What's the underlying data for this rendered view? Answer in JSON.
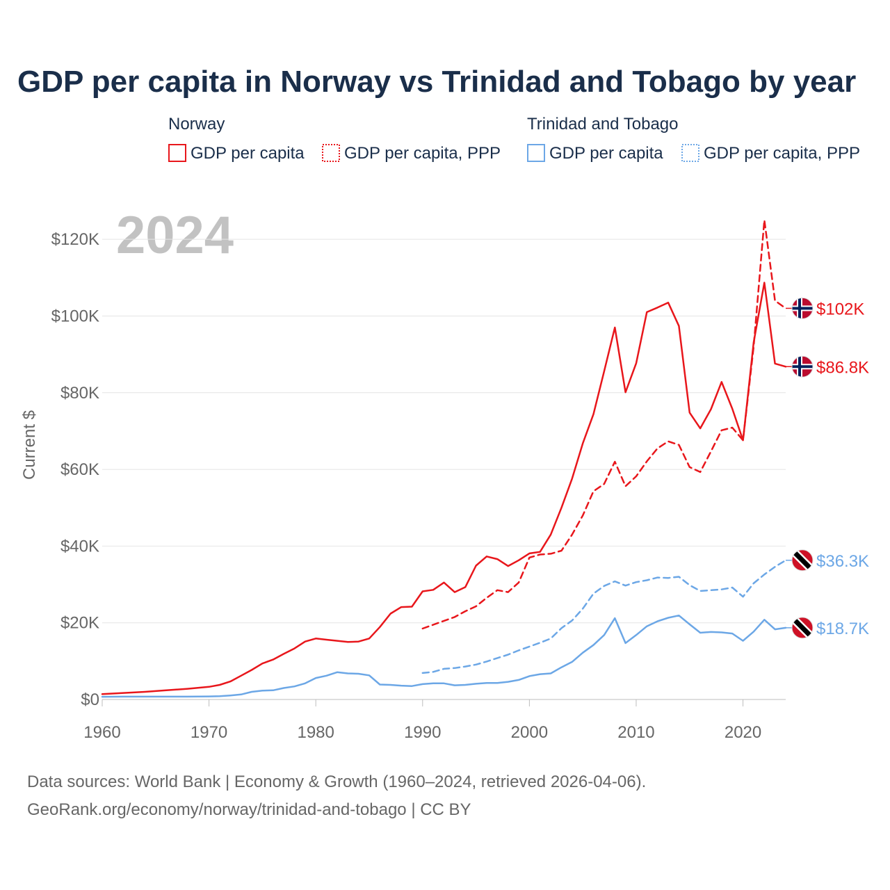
{
  "title": "GDP per capita in Norway vs Trinidad and Tobago by year",
  "year_label": "2024",
  "legend": [
    {
      "group": "Norway",
      "color": "#e8161b",
      "items": [
        "GDP per capita",
        "GDP per capita, PPP"
      ]
    },
    {
      "group": "Trinidad and Tobago",
      "color": "#6ca7e6",
      "items": [
        "GDP per capita",
        "GDP per capita, PPP"
      ]
    }
  ],
  "footer": {
    "line1": "Data sources: World Bank | Economy & Growth (1960–2024, retrieved 2026-04-06).",
    "line2": "GeoRank.org/economy/norway/trinidad-and-tobago | CC BY"
  },
  "chart_data": {
    "type": "line",
    "title": "GDP per capita in Norway vs Trinidad and Tobago by year",
    "xlabel": "",
    "ylabel": "Current $",
    "xlim": [
      1960,
      2024
    ],
    "ylim": [
      0,
      130000
    ],
    "x_ticks": [
      1960,
      1970,
      1980,
      1990,
      2000,
      2010,
      2020
    ],
    "x_tick_labels": [
      "1960",
      "1970",
      "1980",
      "1990",
      "2000",
      "2010",
      "2020"
    ],
    "y_ticks": [
      0,
      20000,
      40000,
      60000,
      80000,
      100000,
      120000
    ],
    "y_tick_labels": [
      "$0",
      "$20K",
      "$40K",
      "$60K",
      "$80K",
      "$100K",
      "$120K"
    ],
    "grid": true,
    "series": [
      {
        "name": "Norway GDP per capita",
        "country": "Norway",
        "metric": "GDP per capita",
        "style": "solid",
        "color": "#e8161b",
        "end_label": "$86.8K",
        "x": [
          1960,
          1962,
          1964,
          1966,
          1968,
          1970,
          1971,
          1972,
          1973,
          1974,
          1975,
          1976,
          1977,
          1978,
          1979,
          1980,
          1981,
          1982,
          1983,
          1984,
          1985,
          1986,
          1987,
          1988,
          1989,
          1990,
          1991,
          1992,
          1993,
          1994,
          1995,
          1996,
          1997,
          1998,
          1999,
          2000,
          2001,
          2002,
          2003,
          2004,
          2005,
          2006,
          2007,
          2008,
          2009,
          2010,
          2011,
          2012,
          2013,
          2014,
          2015,
          2016,
          2017,
          2018,
          2019,
          2020,
          2021,
          2022,
          2023,
          2024
        ],
        "y": [
          1400,
          1700,
          2000,
          2400,
          2800,
          3300,
          3800,
          4700,
          6200,
          7700,
          9400,
          10400,
          11900,
          13300,
          15100,
          15900,
          15600,
          15300,
          15000,
          15100,
          15900,
          18900,
          22400,
          24100,
          24200,
          28200,
          28600,
          30500,
          28000,
          29300,
          34900,
          37300,
          36600,
          34800,
          36300,
          38100,
          38500,
          43000,
          50000,
          57600,
          66800,
          74400,
          85600,
          97000,
          80100,
          87700,
          101000,
          102200,
          103500,
          97400,
          74800,
          70700,
          75700,
          82800,
          75800,
          67600,
          93100,
          108700,
          87600,
          86800
        ]
      },
      {
        "name": "Norway GDP per capita, PPP",
        "country": "Norway",
        "metric": "GDP per capita, PPP",
        "style": "dashed",
        "color": "#e8161b",
        "end_label": "$102K",
        "x": [
          1990,
          1991,
          1992,
          1993,
          1994,
          1995,
          1996,
          1997,
          1998,
          1999,
          2000,
          2001,
          2002,
          2003,
          2004,
          2005,
          2006,
          2007,
          2008,
          2009,
          2010,
          2011,
          2012,
          2013,
          2014,
          2015,
          2016,
          2017,
          2018,
          2019,
          2020,
          2021,
          2022,
          2023,
          2024
        ],
        "y": [
          18500,
          19500,
          20500,
          21500,
          23000,
          24300,
          26500,
          28500,
          28000,
          30500,
          37000,
          37800,
          38000,
          38800,
          43000,
          48000,
          54300,
          56200,
          62000,
          55600,
          58200,
          62100,
          65500,
          67300,
          66400,
          60600,
          59300,
          64700,
          70200,
          70900,
          67600,
          92000,
          125000,
          104000,
          102000
        ]
      },
      {
        "name": "Trinidad and Tobago GDP per capita",
        "country": "Trinidad and Tobago",
        "metric": "GDP per capita",
        "style": "solid",
        "color": "#6ca7e6",
        "end_label": "$18.7K",
        "x": [
          1960,
          1962,
          1964,
          1966,
          1968,
          1970,
          1971,
          1972,
          1973,
          1974,
          1975,
          1976,
          1977,
          1978,
          1979,
          1980,
          1981,
          1982,
          1983,
          1984,
          1985,
          1986,
          1987,
          1988,
          1989,
          1990,
          1991,
          1992,
          1993,
          1994,
          1995,
          1996,
          1997,
          1998,
          1999,
          2000,
          2001,
          2002,
          2003,
          2004,
          2005,
          2006,
          2007,
          2008,
          2009,
          2010,
          2011,
          2012,
          2013,
          2014,
          2015,
          2016,
          2017,
          2018,
          2019,
          2020,
          2021,
          2022,
          2023,
          2024
        ],
        "y": [
          700,
          750,
          750,
          750,
          750,
          800,
          850,
          1050,
          1300,
          2000,
          2300,
          2400,
          3000,
          3400,
          4200,
          5600,
          6200,
          7100,
          6800,
          6700,
          6300,
          3900,
          3800,
          3600,
          3500,
          4000,
          4200,
          4200,
          3700,
          3800,
          4100,
          4300,
          4300,
          4600,
          5100,
          6100,
          6600,
          6800,
          8400,
          9800,
          12200,
          14200,
          16800,
          21200,
          14700,
          16800,
          19100,
          20400,
          21300,
          21900,
          19600,
          17400,
          17600,
          17500,
          17200,
          15300,
          17700,
          20800,
          18300,
          18700
        ]
      },
      {
        "name": "Trinidad and Tobago GDP per capita, PPP",
        "country": "Trinidad and Tobago",
        "metric": "GDP per capita, PPP",
        "style": "dashed",
        "color": "#6ca7e6",
        "end_label": "$36.3K",
        "x": [
          1990,
          1991,
          1992,
          1993,
          1994,
          1995,
          1996,
          1997,
          1998,
          1999,
          2000,
          2001,
          2002,
          2003,
          2004,
          2005,
          2006,
          2007,
          2008,
          2009,
          2010,
          2011,
          2012,
          2013,
          2014,
          2015,
          2016,
          2017,
          2018,
          2019,
          2020,
          2021,
          2022,
          2023,
          2024
        ],
        "y": [
          6900,
          7200,
          8000,
          8200,
          8600,
          9100,
          9900,
          10800,
          11700,
          12800,
          13800,
          14800,
          15900,
          18600,
          20600,
          23700,
          27600,
          29600,
          30800,
          29700,
          30600,
          31100,
          31800,
          31700,
          32000,
          29800,
          28300,
          28500,
          28700,
          29200,
          26800,
          30300,
          32600,
          34600,
          36300
        ]
      }
    ]
  }
}
